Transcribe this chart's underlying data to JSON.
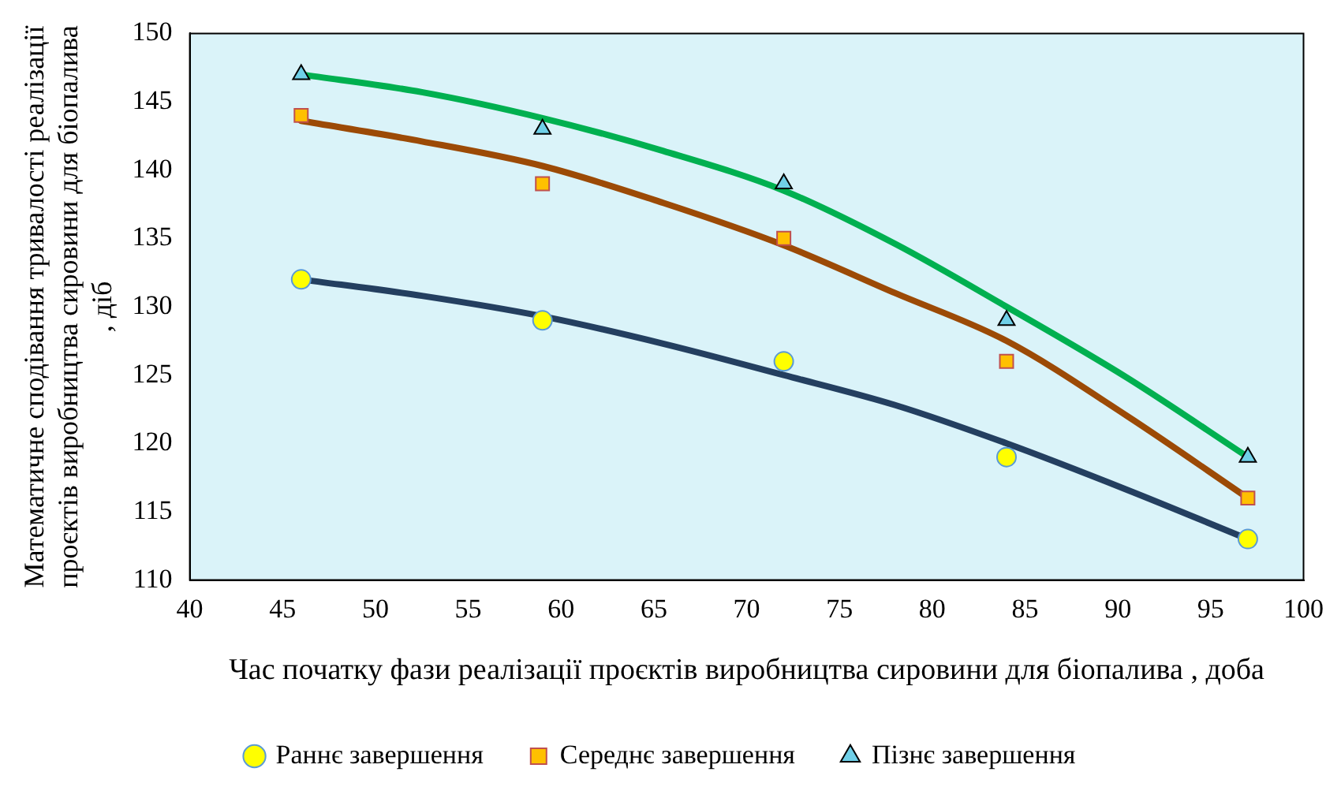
{
  "chart_data": {
    "type": "scatter",
    "xlabel": "Час початку фази реалізації проєктів виробництва сировини для біопалива , доба",
    "ylabel": "Математичне сподівання тривалості реалізації проєктів виробництва сировини для біопалива , діб",
    "x": [
      46,
      59,
      72,
      84,
      97
    ],
    "series": [
      {
        "name": "Раннє завершення",
        "color": "#ffff00",
        "marker": "circle",
        "values": [
          132,
          129,
          126,
          119,
          113
        ]
      },
      {
        "name": "Середнє завершення",
        "color": "#ffc000",
        "marker": "square",
        "values": [
          144,
          139,
          135,
          126,
          116
        ]
      },
      {
        "name": "Пізнє завершення",
        "color": "#70d0e8",
        "marker": "triangle",
        "values": [
          147,
          143,
          139,
          129,
          119
        ]
      },
      {
        "type": "line",
        "color": "#243f60",
        "marker": "none",
        "x": [
          46,
          52.5,
          59,
          65.5,
          72,
          78,
          84,
          90.5,
          97
        ],
        "values": [
          132,
          130.8,
          129.3,
          127.3,
          125,
          122.8,
          120,
          116.6,
          113
        ]
      },
      {
        "type": "line",
        "color": "#9c4a06",
        "marker": "none",
        "x": [
          46,
          52.5,
          59,
          65.5,
          72,
          78,
          84,
          90.5,
          97
        ],
        "values": [
          143.6,
          142.1,
          140.3,
          137.6,
          134.5,
          131,
          127.5,
          122,
          116
        ]
      },
      {
        "type": "line",
        "color": "#00b050",
        "marker": "none",
        "x": [
          46,
          52.5,
          59,
          65.5,
          72,
          78,
          84,
          90.5,
          97
        ],
        "values": [
          147,
          145.7,
          143.8,
          141.4,
          138.5,
          134.6,
          130,
          124.8,
          119
        ]
      }
    ],
    "xlim": [
      40,
      100
    ],
    "xticks": [
      40,
      45,
      50,
      55,
      60,
      65,
      70,
      75,
      80,
      85,
      90,
      95,
      100
    ],
    "ylim": [
      110,
      150
    ],
    "yticks": [
      110,
      115,
      120,
      125,
      130,
      135,
      140,
      145,
      150
    ],
    "grid": false,
    "legend": "bottom"
  }
}
